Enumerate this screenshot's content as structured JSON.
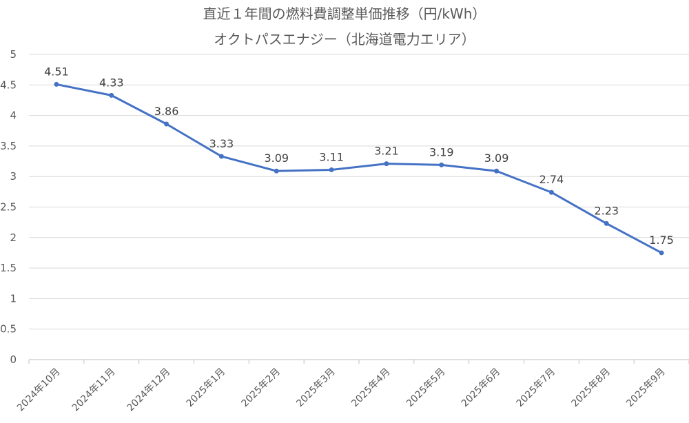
{
  "chart_data": {
    "type": "line",
    "title": "直近１年間の燃料費調整単価推移（円/kWh）",
    "subtitle": "オクトパスエナジー（北海道電力エリア）",
    "xlabel": "",
    "ylabel": "",
    "ylim": [
      0,
      5
    ],
    "yticks": [
      "0",
      "0.5",
      "1",
      "1.5",
      "2",
      "2.5",
      "3",
      "3.5",
      "4",
      "4.5",
      "5"
    ],
    "grid": true,
    "legend": "none",
    "categories": [
      "2024年10月",
      "2024年11月",
      "2024年12月",
      "2025年1月",
      "2025年2月",
      "2025年3月",
      "2025年4月",
      "2025年5月",
      "2025年6月",
      "2025年7月",
      "2025年8月",
      "2025年9月"
    ],
    "series": [
      {
        "values": [
          4.51,
          4.33,
          3.86,
          3.33,
          3.09,
          3.11,
          3.21,
          3.19,
          3.09,
          2.74,
          2.23,
          1.75
        ],
        "labels": [
          "4.51",
          "4.33",
          "3.86",
          "3.33",
          "3.09",
          "3.11",
          "3.21",
          "3.19",
          "3.09",
          "2.74",
          "2.23",
          "1.75"
        ],
        "color": "#4472c4"
      }
    ],
    "colors": {
      "line": "#4472c4",
      "grid": "#d9d9d9",
      "axis": "#bfbfbf",
      "text": "#595959"
    }
  }
}
